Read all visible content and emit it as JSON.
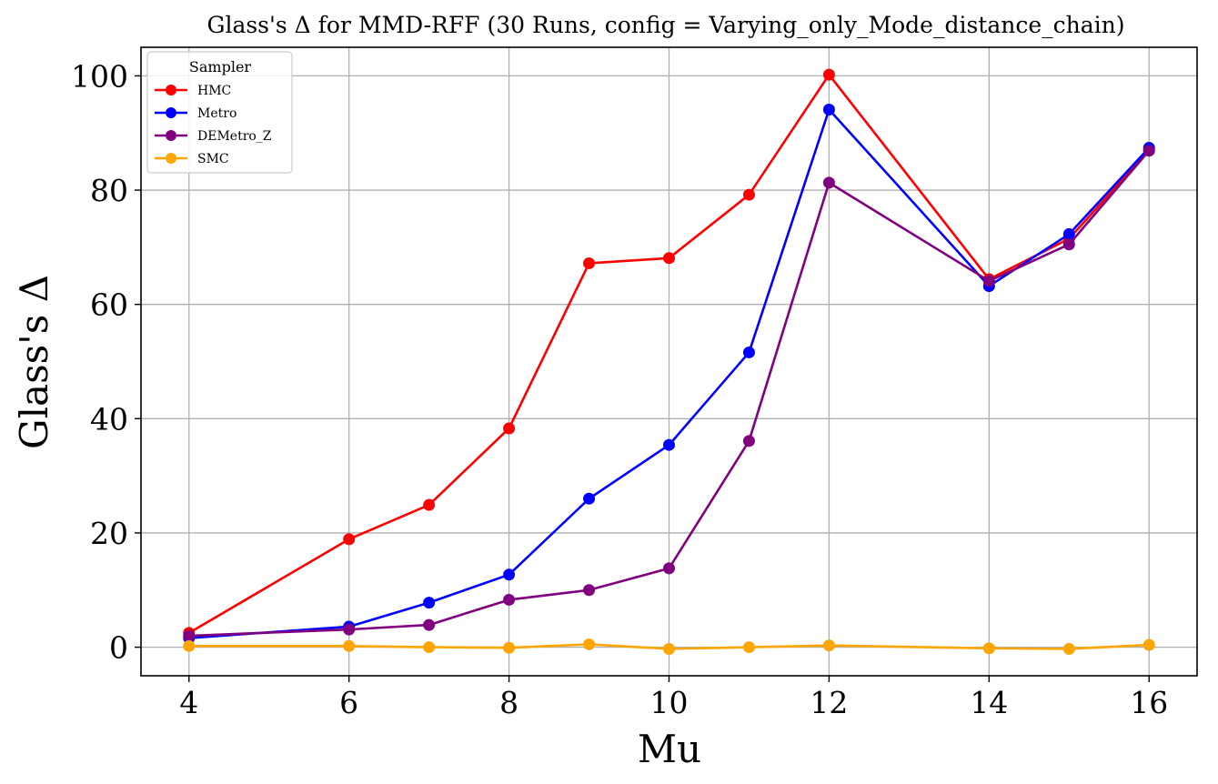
{
  "chart_data": {
    "type": "line",
    "title": "Glass's Δ for MMD-RFF (30 Runs, config = Varying_only_Mode_distance_chain)",
    "xlabel": "Mu",
    "ylabel": "Glass's Δ",
    "x": [
      4,
      6,
      7,
      8,
      9,
      10,
      11,
      12,
      14,
      15,
      16
    ],
    "xlim": [
      3.4,
      16.6
    ],
    "ylim": [
      -5,
      105
    ],
    "xticks": [
      4,
      6,
      8,
      10,
      12,
      14,
      16
    ],
    "yticks": [
      0,
      20,
      40,
      60,
      80,
      100
    ],
    "grid": true,
    "legend": {
      "title": "Sampler",
      "placement": "top-left"
    },
    "series": [
      {
        "name": "HMC",
        "color": "#ff0000",
        "values": [
          2.5,
          18.9,
          24.9,
          38.3,
          67.2,
          68.1,
          79.2,
          100.2,
          64.4,
          71.5,
          87.0
        ]
      },
      {
        "name": "Metro",
        "color": "#0000ff",
        "values": [
          1.6,
          3.6,
          7.8,
          12.7,
          26.0,
          35.4,
          51.6,
          94.1,
          63.2,
          72.3,
          87.4
        ]
      },
      {
        "name": "DEMetro_Z",
        "color": "#800080",
        "values": [
          2.0,
          3.1,
          3.9,
          8.3,
          10.0,
          13.8,
          36.1,
          81.3,
          64.1,
          70.5,
          86.9
        ]
      },
      {
        "name": "SMC",
        "color": "#ffa500",
        "values": [
          0.2,
          0.2,
          0.0,
          -0.1,
          0.5,
          -0.3,
          0.0,
          0.3,
          -0.2,
          -0.3,
          0.4
        ]
      }
    ]
  }
}
